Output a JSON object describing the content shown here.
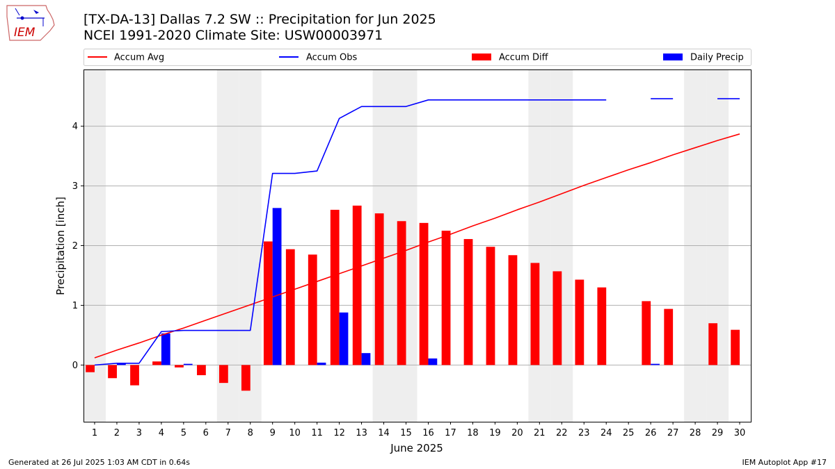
{
  "header": {
    "title": "[TX-DA-13] Dallas 7.2 SW :: Precipitation for Jun 2025",
    "subtitle": "NCEI 1991-2020 Climate Site: USW00003971",
    "logo_text": "IEM"
  },
  "footer": {
    "left": "Generated at 26 Jul 2025 1:03 AM CDT in 0.64s",
    "right": "IEM Autoplot App #17"
  },
  "colors": {
    "accum_avg": "#ff0000",
    "accum_obs": "#0000ff",
    "accum_diff": "#ff0000",
    "daily_precip": "#0000ff",
    "weekend_shade": "#eeeeee",
    "grid": "#b0b0b0"
  },
  "chart_data": {
    "type": "bar",
    "xlabel": "June 2025",
    "ylabel": "Precipitation [inch]",
    "x": [
      1,
      2,
      3,
      4,
      5,
      6,
      7,
      8,
      9,
      10,
      11,
      12,
      13,
      14,
      15,
      16,
      17,
      18,
      19,
      20,
      21,
      22,
      23,
      24,
      25,
      26,
      27,
      28,
      29,
      30
    ],
    "xlim": [
      0.5,
      30.5
    ],
    "ylim": [
      -0.95,
      4.95
    ],
    "yticks": [
      0,
      1,
      2,
      3,
      4
    ],
    "grid": "y",
    "legend_position": "top",
    "shaded_days": [
      1,
      7,
      8,
      14,
      15,
      21,
      22,
      28,
      29
    ],
    "series": [
      {
        "name": "Accum Avg",
        "type": "line",
        "values": [
          0.12,
          0.25,
          0.37,
          0.5,
          0.62,
          0.75,
          0.88,
          1.01,
          1.14,
          1.27,
          1.4,
          1.53,
          1.66,
          1.79,
          1.92,
          2.06,
          2.19,
          2.33,
          2.46,
          2.6,
          2.73,
          2.87,
          3.01,
          3.14,
          3.27,
          3.39,
          3.52,
          3.64,
          3.76,
          3.87
        ]
      },
      {
        "name": "Accum Obs",
        "type": "line",
        "values": [
          0.0,
          0.03,
          0.03,
          0.56,
          0.58,
          0.58,
          0.58,
          0.58,
          3.21,
          3.21,
          3.25,
          4.13,
          4.33,
          4.33,
          4.33,
          4.44,
          4.44,
          4.44,
          4.44,
          4.44,
          4.44,
          4.44,
          4.44,
          4.44,
          null,
          4.46,
          4.46,
          null,
          4.46,
          4.46
        ]
      },
      {
        "name": "Accum Diff",
        "type": "bar",
        "values": [
          -0.12,
          -0.22,
          -0.34,
          0.06,
          -0.04,
          -0.17,
          -0.3,
          -0.43,
          2.07,
          1.94,
          1.85,
          2.6,
          2.67,
          2.54,
          2.41,
          2.38,
          2.25,
          2.11,
          1.98,
          1.84,
          1.71,
          1.57,
          1.43,
          1.3,
          null,
          1.07,
          0.94,
          null,
          0.7,
          0.59
        ]
      },
      {
        "name": "Daily Precip",
        "type": "bar",
        "values": [
          0,
          0.03,
          0,
          0.53,
          0.02,
          0,
          0,
          0,
          2.63,
          0,
          0.04,
          0.88,
          0.2,
          0,
          0,
          0.11,
          0,
          0,
          0,
          0,
          0,
          0,
          0,
          0,
          null,
          0.02,
          0,
          null,
          0,
          0
        ]
      }
    ]
  }
}
